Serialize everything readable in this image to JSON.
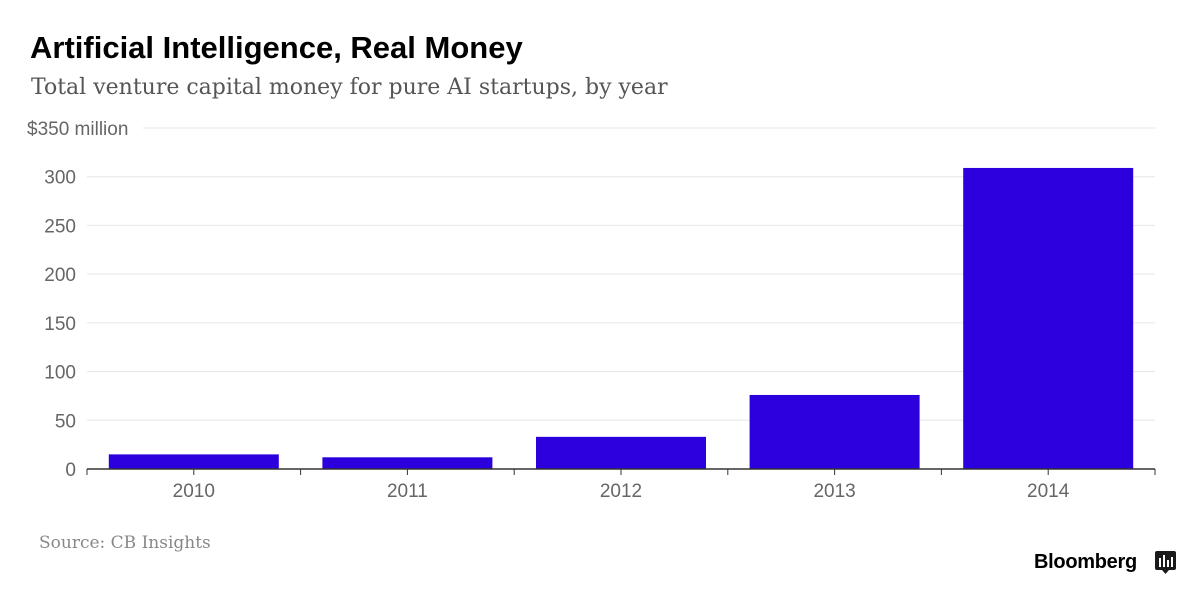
{
  "header": {
    "title": "Artificial Intelligence, Real Money",
    "subtitle": "Total venture capital money for pure AI startups, by year"
  },
  "footer": {
    "source": "Source: CB Insights",
    "brand": "Bloomberg",
    "brand_icon": "bloomberg-terminal-icon"
  },
  "colors": {
    "bar": "#2b00dd",
    "grid": "#e6e6e6",
    "axis": "#333333",
    "tick_text": "#666666"
  },
  "chart_data": {
    "type": "bar",
    "title": "Artificial Intelligence, Real Money",
    "subtitle": "Total venture capital money for pure AI startups, by year",
    "xlabel": "",
    "ylabel": "",
    "categories": [
      "2010",
      "2011",
      "2012",
      "2013",
      "2014"
    ],
    "values": [
      15,
      12,
      33,
      76,
      309
    ],
    "ylim": [
      0,
      350
    ],
    "yticks": [
      0,
      50,
      100,
      150,
      200,
      250,
      300,
      350
    ],
    "ytick_labels": [
      "0",
      "50",
      "100",
      "150",
      "200",
      "250",
      "300",
      "$350 million"
    ],
    "grid": true,
    "legend": "none",
    "source": "Source: CB Insights"
  }
}
